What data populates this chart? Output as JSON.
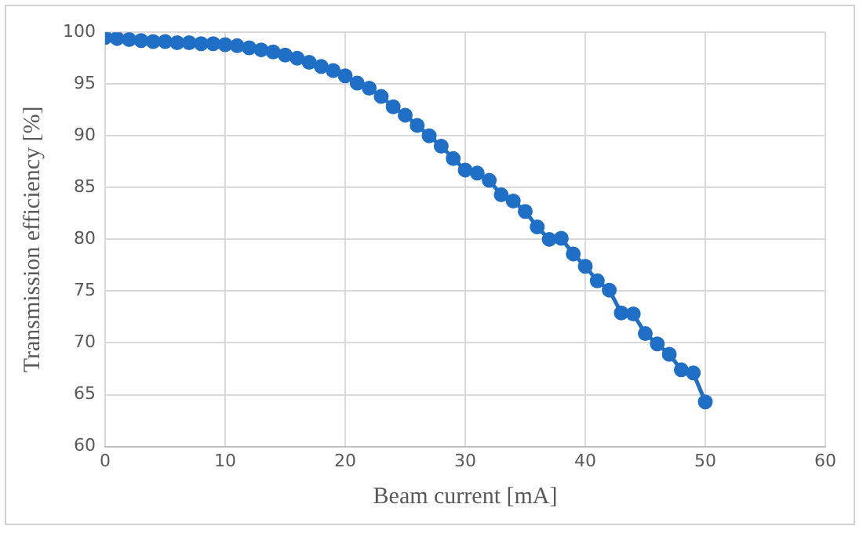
{
  "chart_data": {
    "type": "line",
    "xlabel": "Beam current [mA]",
    "ylabel": "Transmission efficiency [%]",
    "x": [
      0,
      1,
      2,
      3,
      4,
      5,
      6,
      7,
      8,
      9,
      10,
      11,
      12,
      13,
      14,
      15,
      16,
      17,
      18,
      19,
      20,
      21,
      22,
      23,
      24,
      25,
      26,
      27,
      28,
      29,
      30,
      31,
      32,
      33,
      34,
      35,
      36,
      37,
      38,
      39,
      40,
      41,
      42,
      43,
      44,
      45,
      46,
      47,
      48,
      49,
      50
    ],
    "series": [
      {
        "color": "#1f6fc6",
        "values": [
          99.5,
          99.4,
          99.3,
          99.2,
          99.1,
          99.1,
          99.0,
          99.0,
          98.9,
          98.9,
          98.8,
          98.7,
          98.5,
          98.3,
          98.1,
          97.8,
          97.5,
          97.1,
          96.7,
          96.3,
          95.8,
          95.1,
          94.6,
          93.8,
          92.8,
          92.0,
          91.0,
          90.0,
          89.0,
          87.8,
          86.7,
          86.4,
          85.7,
          84.3,
          83.7,
          82.7,
          81.2,
          80.0,
          80.1,
          78.6,
          77.4,
          76.0,
          75.1,
          72.9,
          72.8,
          70.9,
          69.9,
          68.9,
          67.4,
          67.1,
          64.3
        ]
      }
    ],
    "xlim": [
      0,
      60
    ],
    "xticks": [
      0,
      10,
      20,
      30,
      40,
      50,
      60
    ],
    "ylim": [
      60,
      100
    ],
    "yticks": [
      60,
      65,
      70,
      75,
      80,
      85,
      90,
      95,
      100
    ],
    "grid": true,
    "legend": false,
    "marker": "circle",
    "line_style": "solid"
  }
}
